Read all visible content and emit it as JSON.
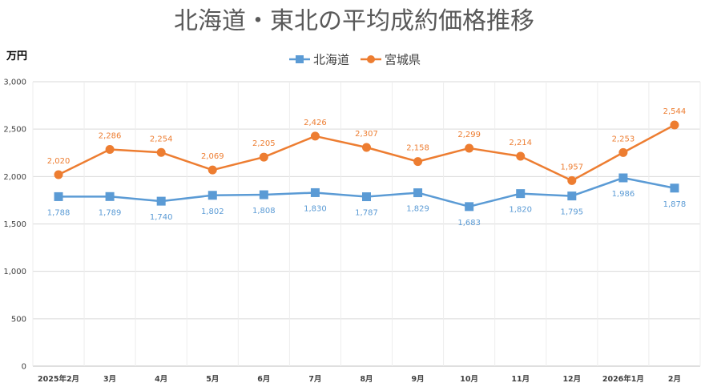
{
  "chart_data": {
    "type": "line",
    "title": "北海道・東北の平均成約価格推移",
    "ylabel": "万円",
    "xlabel": "",
    "categories": [
      "2025年2月",
      "3月",
      "4月",
      "5月",
      "6月",
      "7月",
      "8月",
      "9月",
      "10月",
      "11月",
      "12月",
      "2026年1月",
      "2月"
    ],
    "ylim": [
      0,
      3000
    ],
    "yticks": [
      0,
      500,
      1000,
      1500,
      2000,
      2500,
      3000
    ],
    "ytick_labels": [
      "0",
      "500",
      "1,000",
      "1,500",
      "2,000",
      "2,500",
      "3,000"
    ],
    "grid": true,
    "legend_position": "top-center",
    "series": [
      {
        "name": "北海道",
        "color": "#5B9BD5",
        "marker": "square",
        "label_position": "below",
        "values": [
          1788,
          1789,
          1740,
          1802,
          1808,
          1830,
          1787,
          1829,
          1683,
          1820,
          1795,
          1986,
          1878
        ],
        "labels": [
          "1,788",
          "1,789",
          "1,740",
          "1,802",
          "1,808",
          "1,830",
          "1,787",
          "1,829",
          "1,683",
          "1,820",
          "1,795",
          "1,986",
          "1,878"
        ]
      },
      {
        "name": "宮城県",
        "color": "#ED7D31",
        "marker": "circle",
        "label_position": "above",
        "values": [
          2020,
          2286,
          2254,
          2069,
          2205,
          2426,
          2307,
          2158,
          2299,
          2214,
          1957,
          2253,
          2544
        ],
        "labels": [
          "2,020",
          "2,286",
          "2,254",
          "2,069",
          "2,205",
          "2,426",
          "2,307",
          "2,158",
          "2,299",
          "2,214",
          "1,957",
          "2,253",
          "2,544"
        ]
      }
    ]
  }
}
